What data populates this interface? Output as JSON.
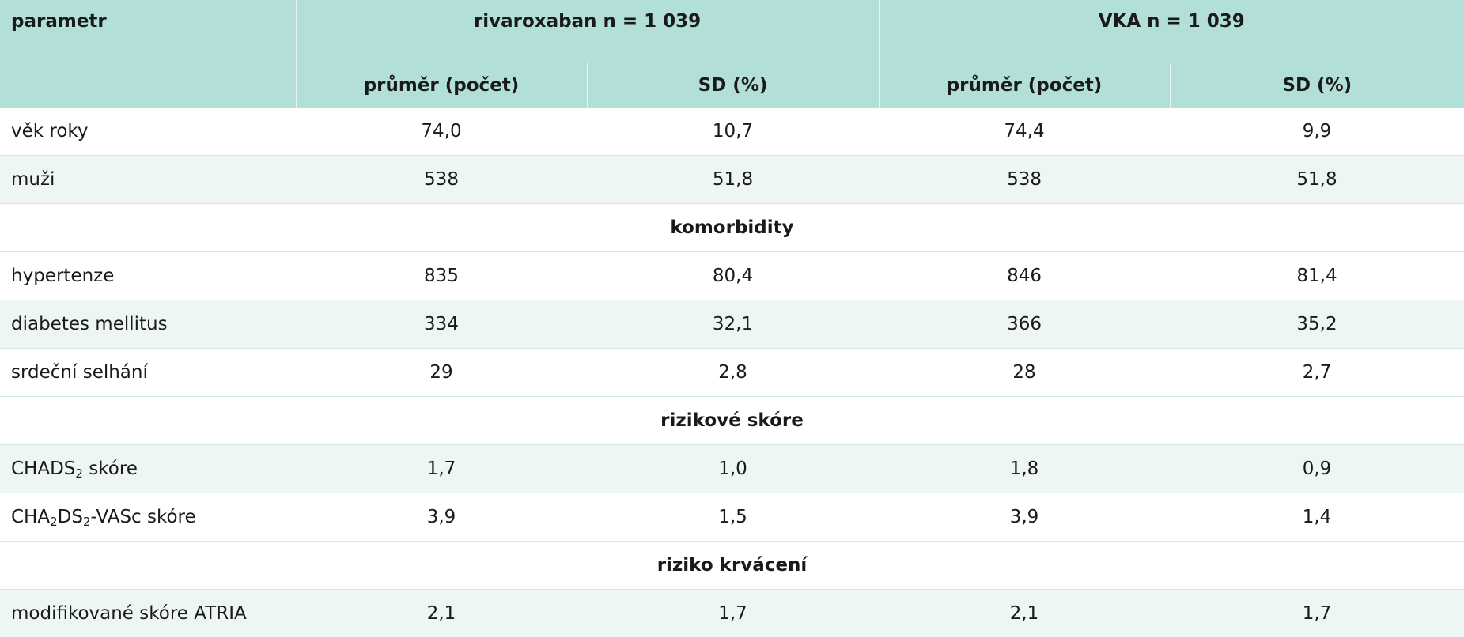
{
  "table": {
    "header": {
      "param_label": "parametr",
      "group1": "rivaroxaban n = 1 039",
      "group2": "VKA n = 1 039",
      "sub1": "průměr (počet)",
      "sub2": "SD (%)",
      "sub3": "průměr (počet)",
      "sub4": "SD (%)"
    },
    "rows": [
      {
        "label": "věk roky",
        "v1": "74,0",
        "v2": "10,7",
        "v3": "74,4",
        "v4": "9,9"
      },
      {
        "label": "muži",
        "v1": "538",
        "v2": "51,8",
        "v3": "538",
        "v4": "51,8"
      },
      {
        "section": "komorbidity"
      },
      {
        "label": "hypertenze",
        "v1": "835",
        "v2": "80,4",
        "v3": "846",
        "v4": "81,4"
      },
      {
        "label": "diabetes mellitus",
        "v1": "334",
        "v2": "32,1",
        "v3": "366",
        "v4": "35,2"
      },
      {
        "label": "srdeční selhání",
        "v1": "29",
        "v2": "2,8",
        "v3": "28",
        "v4": "2,7"
      },
      {
        "section": "rizikové skóre"
      },
      {
        "label_parts": [
          "CHADS",
          "2",
          " skóre"
        ],
        "v1": "1,7",
        "v2": "1,0",
        "v3": "1,8",
        "v4": "0,9"
      },
      {
        "label_parts": [
          "CHA",
          "2",
          "DS",
          "2",
          "-VASc skóre"
        ],
        "v1": "3,9",
        "v2": "1,5",
        "v3": "3,9",
        "v4": "1,4"
      },
      {
        "section": "riziko krvácení"
      },
      {
        "label": "modifikované skóre ATRIA",
        "v1": "2,1",
        "v2": "1,7",
        "v3": "2,1",
        "v4": "1,7"
      }
    ]
  }
}
